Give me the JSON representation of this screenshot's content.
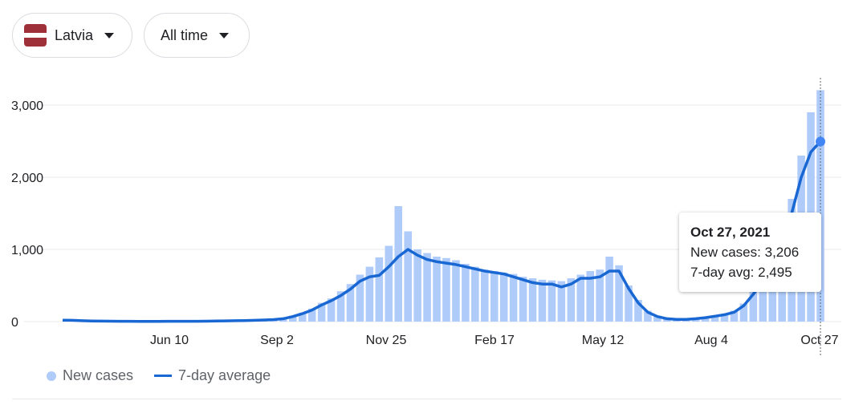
{
  "filters": {
    "country": {
      "label": "Latvia",
      "flag_colors": [
        "#9e3039",
        "#ffffff",
        "#9e3039"
      ]
    },
    "range": {
      "label": "All time"
    }
  },
  "legend": {
    "new_cases": "New cases",
    "avg": "7-day average"
  },
  "colors": {
    "bars": "#aecbfa",
    "line": "#1967d2",
    "grid": "#e8eaed",
    "marker": "#4285f4"
  },
  "tooltip": {
    "date": "Oct 27, 2021",
    "new_cases_label": "New cases:",
    "new_cases_value": "3,206",
    "avg_label": "7-day avg:",
    "avg_value": "2,495"
  },
  "chart_data": {
    "type": "bar",
    "title": "",
    "xlabel": "",
    "ylabel": "",
    "x_ticks": [
      "Jun 10",
      "Sep 2",
      "Nov 25",
      "Feb 17",
      "May 12",
      "Aug 4",
      "Oct 27"
    ],
    "y_ticks": [
      "0",
      "1,000",
      "2,000",
      "3,000"
    ],
    "ylim": [
      0,
      3300
    ],
    "grid": true,
    "legend_position": "bottom-left",
    "series": [
      {
        "name": "New cases",
        "type": "bar",
        "color": "#aecbfa",
        "note": "daily values, one per week sample",
        "values": [
          20,
          15,
          10,
          8,
          6,
          5,
          5,
          4,
          3,
          3,
          3,
          4,
          4,
          5,
          5,
          6,
          8,
          10,
          12,
          15,
          20,
          25,
          30,
          45,
          80,
          120,
          180,
          260,
          320,
          420,
          520,
          650,
          760,
          890,
          1050,
          1600,
          1250,
          1000,
          950,
          900,
          880,
          850,
          800,
          760,
          720,
          700,
          680,
          660,
          620,
          600,
          580,
          570,
          560,
          600,
          650,
          700,
          720,
          900,
          780,
          500,
          300,
          150,
          80,
          40,
          30,
          30,
          40,
          60,
          80,
          100,
          150,
          250,
          420,
          600,
          900,
          1300,
          1700,
          2300,
          2900,
          3206
        ]
      },
      {
        "name": "7-day average",
        "type": "line",
        "color": "#1967d2",
        "values": [
          20,
          18,
          12,
          9,
          7,
          6,
          5,
          4,
          3,
          3,
          3,
          4,
          4,
          5,
          5,
          6,
          8,
          10,
          12,
          14,
          18,
          22,
          28,
          40,
          70,
          110,
          160,
          230,
          290,
          360,
          450,
          560,
          620,
          640,
          760,
          900,
          1000,
          920,
          860,
          830,
          810,
          790,
          760,
          730,
          700,
          680,
          660,
          620,
          580,
          540,
          520,
          520,
          480,
          520,
          600,
          600,
          620,
          700,
          700,
          460,
          260,
          130,
          70,
          40,
          30,
          30,
          40,
          55,
          75,
          95,
          130,
          220,
          380,
          560,
          820,
          1150,
          1500,
          2000,
          2350,
          2495
        ]
      }
    ],
    "highlight": {
      "x": "Oct 27",
      "new_cases": 3206,
      "avg": 2495
    }
  }
}
